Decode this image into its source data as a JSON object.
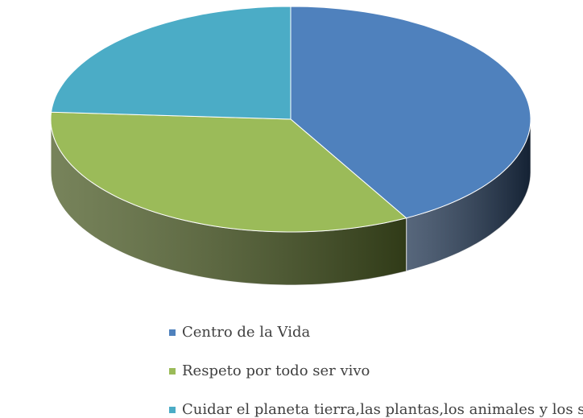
{
  "chart_data": {
    "type": "pie",
    "categories": [
      "Centro de la Vida",
      "Respeto por todo ser vivo",
      "Cuidar el planeta tierra,las plantas,los animales y los seres humanos"
    ],
    "values": [
      42,
      34,
      24
    ],
    "colors": [
      "#4f81bd",
      "#9bbb59",
      "#4bacc6"
    ],
    "side_colors": [
      "#1f3450",
      "#4a5a24",
      "#1f5a6a"
    ],
    "legend": "bottom"
  }
}
